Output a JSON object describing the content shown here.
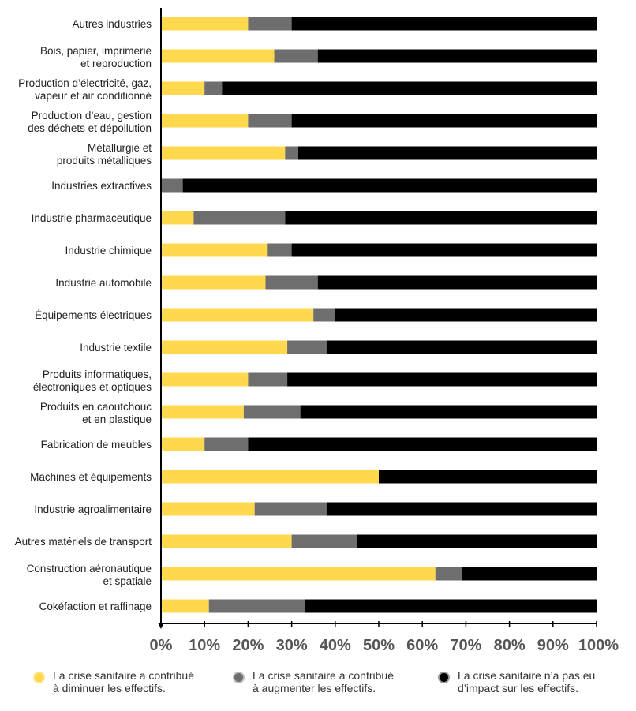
{
  "chart_data": {
    "type": "bar",
    "orientation": "horizontal",
    "stacked": true,
    "categories": [
      [
        "Autres industries"
      ],
      [
        "Bois, papier, imprimerie",
        "et reproduction"
      ],
      [
        "Production d’électricité, gaz,",
        "vapeur et air conditionné"
      ],
      [
        "Production d’eau, gestion",
        "des déchets et dépollution"
      ],
      [
        "Métallurgie et",
        "produits métalliques"
      ],
      [
        "Industries extractives"
      ],
      [
        "Industrie pharmaceutique"
      ],
      [
        "Industrie chimique"
      ],
      [
        "Industrie automobile"
      ],
      [
        "Équipements électriques"
      ],
      [
        "Industrie textile"
      ],
      [
        "Produits informatiques,",
        "électroniques et optiques"
      ],
      [
        "Produits en caoutchouc",
        "et en plastique"
      ],
      [
        "Fabrication de meubles"
      ],
      [
        "Machines et équipements"
      ],
      [
        "Industrie agroalimentaire"
      ],
      [
        "Autres matériels de transport"
      ],
      [
        "Construction aéronautique",
        "et spatiale"
      ],
      [
        "Cokéfaction et raffinage"
      ]
    ],
    "series": [
      {
        "name": "La crise sanitaire a contribué\nà diminuer les effectifs.",
        "color": "#FFD84D",
        "values": [
          20,
          26,
          10,
          20,
          28.5,
          0,
          7.5,
          24.5,
          24,
          35,
          29,
          20,
          19,
          10,
          50,
          21.5,
          30,
          63,
          11
        ]
      },
      {
        "name": "La crise sanitaire a contribué\nà augmenter les effectifs.",
        "color": "#6E6E6E",
        "values": [
          10,
          10,
          4,
          10,
          3,
          5,
          21,
          5.5,
          12,
          5,
          9,
          9,
          13,
          10,
          0,
          16.5,
          15,
          6,
          22
        ]
      },
      {
        "name": "La crise sanitaire n’a pas eu\nd’impact sur les effectifs.",
        "color": "#000000",
        "values": [
          70,
          64,
          86,
          70,
          68.5,
          95,
          71.5,
          70,
          64,
          60,
          62,
          71,
          68,
          80,
          50,
          62,
          55,
          31,
          67
        ]
      }
    ],
    "x_ticks": [
      "0%",
      "10%",
      "20%",
      "30%",
      "40%",
      "50%",
      "60%",
      "70%",
      "80%",
      "90%",
      "100%"
    ],
    "xlim": [
      0,
      100
    ],
    "grid": false,
    "legend_position": "bottom"
  }
}
